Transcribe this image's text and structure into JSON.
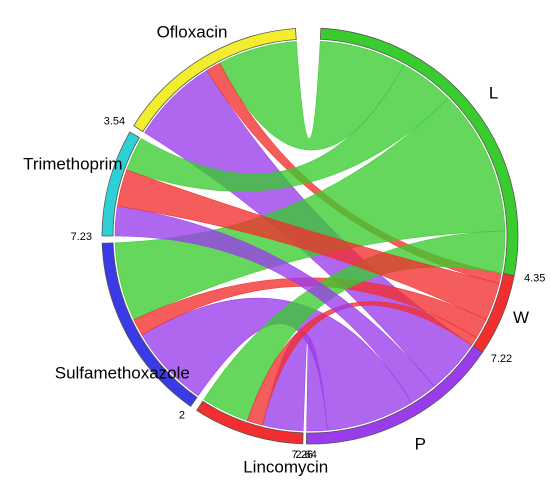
{
  "chart_data": {
    "type": "chord",
    "segments": [
      {
        "name": "L",
        "color": "#39CC2E",
        "total": 7.22
      },
      {
        "name": "W",
        "color": "#F22E2E",
        "total": 2.64
      },
      {
        "name": "P",
        "color": "#9A3CEB",
        "total": 7.26
      },
      {
        "name": "Lincomycin",
        "color": "#F22E2E",
        "total": 2
      },
      {
        "name": "Sulfamethoxazole",
        "color": "#3A3AE6",
        "total": 7.23
      },
      {
        "name": "Trimethoprim",
        "color": "#2ED0D6",
        "total": 3.54
      },
      {
        "name": "Ofloxacin",
        "color": "#F2EE2E",
        "total": 4.35
      }
    ],
    "value_labels": [
      "4.35",
      "7.22",
      "2.64",
      "7.26",
      "2",
      "7.23",
      "3.54"
    ],
    "flows": [
      {
        "from": "Ofloxacin",
        "to": "L",
        "value": 1.9
      },
      {
        "from": "Ofloxacin",
        "to": "W",
        "value": 0.35
      },
      {
        "from": "Ofloxacin",
        "to": "P",
        "value": 2.1
      },
      {
        "from": "Trimethoprim",
        "to": "L",
        "value": 1.2
      },
      {
        "from": "Trimethoprim",
        "to": "W",
        "value": 1.3
      },
      {
        "from": "Trimethoprim",
        "to": "P",
        "value": 1.04
      },
      {
        "from": "Sulfamethoxazole",
        "to": "L",
        "value": 3.2
      },
      {
        "from": "Sulfamethoxazole",
        "to": "W",
        "value": 0.69
      },
      {
        "from": "Sulfamethoxazole",
        "to": "P",
        "value": 3.34
      },
      {
        "from": "Lincomycin",
        "to": "L",
        "value": 0.92
      },
      {
        "from": "Lincomycin",
        "to": "W",
        "value": 0.3
      },
      {
        "from": "Lincomycin",
        "to": "P",
        "value": 0.78
      }
    ]
  }
}
